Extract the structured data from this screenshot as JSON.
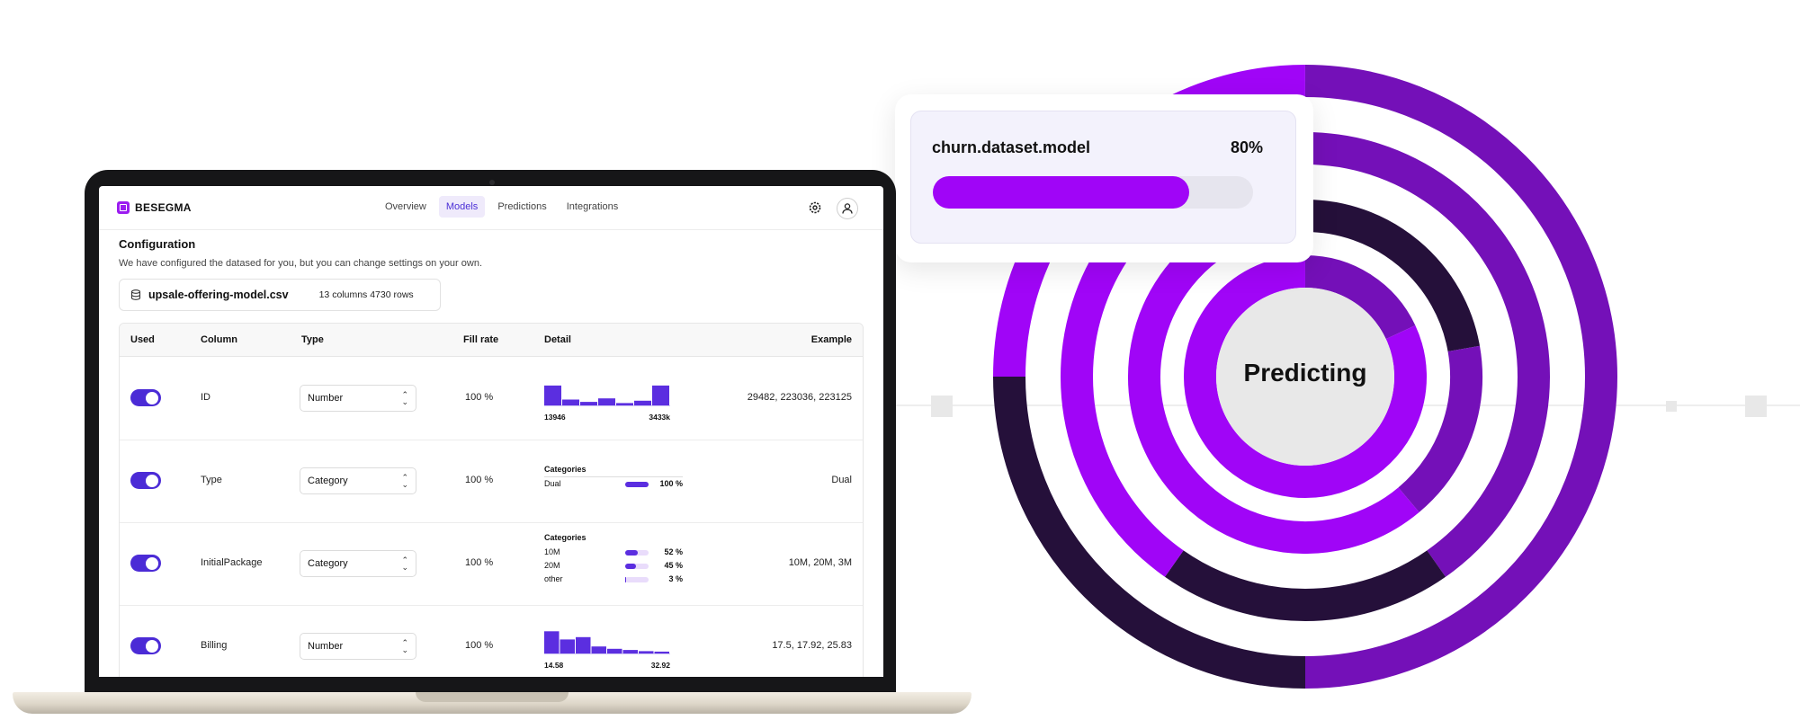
{
  "app": {
    "logo_text": "BESEGMA",
    "nav_tabs": [
      "Overview",
      "Models",
      "Predictions",
      "Integrations"
    ],
    "active_tab": "Models",
    "settings_icon": "gear-icon",
    "profile_icon": "user-icon"
  },
  "config": {
    "title": "Configuration",
    "subtitle": "We have configured the datased for you, but you can change settings on your own.",
    "file_icon": "database-icon",
    "file_name": "upsale-offering-model.csv",
    "file_meta": "13 columns  4730 rows"
  },
  "table": {
    "headers": [
      "Used",
      "Column",
      "Type",
      "Fill rate",
      "Detail",
      "Example"
    ],
    "rows": [
      {
        "used": true,
        "column": "ID",
        "type": "Number",
        "fill": "100 %",
        "detail": {
          "kind": "hist",
          "hist": [
            0.85,
            0.25,
            0.15,
            0.3,
            0.1,
            0.2,
            0.85
          ],
          "min": "13946",
          "max": "3433k"
        },
        "example": "29482, 223036, 223125"
      },
      {
        "used": true,
        "column": "Type",
        "type": "Category",
        "fill": "100 %",
        "detail": {
          "kind": "cat",
          "title": "Categories",
          "cats": [
            {
              "name": "Dual",
              "pct": "100 %",
              "frac": 1.0
            }
          ]
        },
        "example": "Dual"
      },
      {
        "used": true,
        "column": "InitialPackage",
        "type": "Category",
        "fill": "100 %",
        "detail": {
          "kind": "cat",
          "title": "Categories",
          "cats": [
            {
              "name": "10M",
              "pct": "52 %",
              "frac": 0.52
            },
            {
              "name": "20M",
              "pct": "45 %",
              "frac": 0.45
            },
            {
              "name": "other",
              "pct": "3 %",
              "frac": 0.03
            }
          ]
        },
        "example": "10M, 20M, 3M"
      },
      {
        "used": true,
        "column": "Billing",
        "type": "Number",
        "fill": "100 %",
        "detail": {
          "kind": "hist",
          "hist": [
            0.95,
            0.6,
            0.7,
            0.3,
            0.2,
            0.15,
            0.1,
            0.08
          ],
          "min": "14.58",
          "max": "32.92"
        },
        "example": "17.5, 17.92, 25.83"
      }
    ]
  },
  "progress_card": {
    "model_name": "churn.dataset.model",
    "percent_label": "80%",
    "progress": 0.8
  },
  "predict": {
    "label": "Predicting",
    "colors": {
      "bright": "#a005f7",
      "mid": "#7410b8",
      "dark": "#25103a",
      "center": "#e8e8e8"
    }
  }
}
